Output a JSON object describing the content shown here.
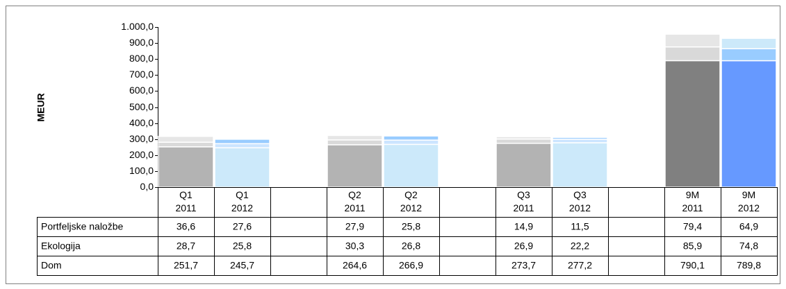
{
  "chart_data": {
    "type": "stacked_bar",
    "y_label": "MEUR",
    "categories": [
      "Q1\n2011",
      "Q1\n2012",
      null,
      "Q2\n2011",
      "Q2\n2012",
      null,
      "Q3\n2011",
      "Q3\n2012",
      null,
      "9M\n2011",
      "9M\n2012"
    ],
    "series": [
      {
        "name": "Portfeljske naložbe",
        "values": [
          36.6,
          27.6,
          null,
          27.9,
          25.8,
          null,
          14.9,
          11.5,
          null,
          79.4,
          64.9
        ],
        "value_labels": [
          "36,6",
          "27,6",
          null,
          "27,9",
          "25,8",
          null,
          "14,9",
          "11,5",
          null,
          "79,4",
          "64,9"
        ],
        "colors": [
          "#e6e6e6",
          "#99ccff",
          null,
          "#e6e6e6",
          "#99ccff",
          null,
          "#e6e6e6",
          "#99ccff",
          null,
          "#e6e6e6",
          "#cce9fa"
        ]
      },
      {
        "name": "Ekologija",
        "values": [
          28.7,
          25.8,
          null,
          30.3,
          26.8,
          null,
          26.9,
          22.2,
          null,
          85.9,
          74.8
        ],
        "value_labels": [
          "28,7",
          "25,8",
          null,
          "30,3",
          "26,8",
          null,
          "26,9",
          "22,2",
          null,
          "85,9",
          "74,8"
        ],
        "colors": [
          "#d9d9d9",
          "#cce5ff",
          null,
          "#d9d9d9",
          "#cce5ff",
          null,
          "#d9d9d9",
          "#cce5ff",
          null,
          "#d9d9d9",
          "#99ccff"
        ]
      },
      {
        "name": "Dom",
        "values": [
          251.7,
          245.7,
          null,
          264.6,
          266.9,
          null,
          273.7,
          277.2,
          null,
          790.1,
          789.8
        ],
        "value_labels": [
          "251,7",
          "245,7",
          null,
          "264,6",
          "266,9",
          null,
          "273,7",
          "277,2",
          null,
          "790,1",
          "789,8"
        ],
        "colors": [
          "#b3b3b3",
          "#cce9fa",
          null,
          "#b3b3b3",
          "#cce9fa",
          null,
          "#b3b3b3",
          "#cce9fa",
          null,
          "#808080",
          "#6699ff"
        ]
      }
    ],
    "ylim": [
      0,
      1000
    ],
    "yticks": [
      {
        "value": 0,
        "label": "0,0"
      },
      {
        "value": 100,
        "label": "100,0"
      },
      {
        "value": 200,
        "label": "200,0"
      },
      {
        "value": 300,
        "label": "300,0"
      },
      {
        "value": 400,
        "label": "400,0"
      },
      {
        "value": 500,
        "label": "500,0"
      },
      {
        "value": 600,
        "label": "600,0"
      },
      {
        "value": 700,
        "label": "700,0"
      },
      {
        "value": 800,
        "label": "800,0"
      },
      {
        "value": 900,
        "label": "900,0"
      },
      {
        "value": 1000,
        "label": "1.000,0"
      }
    ]
  }
}
